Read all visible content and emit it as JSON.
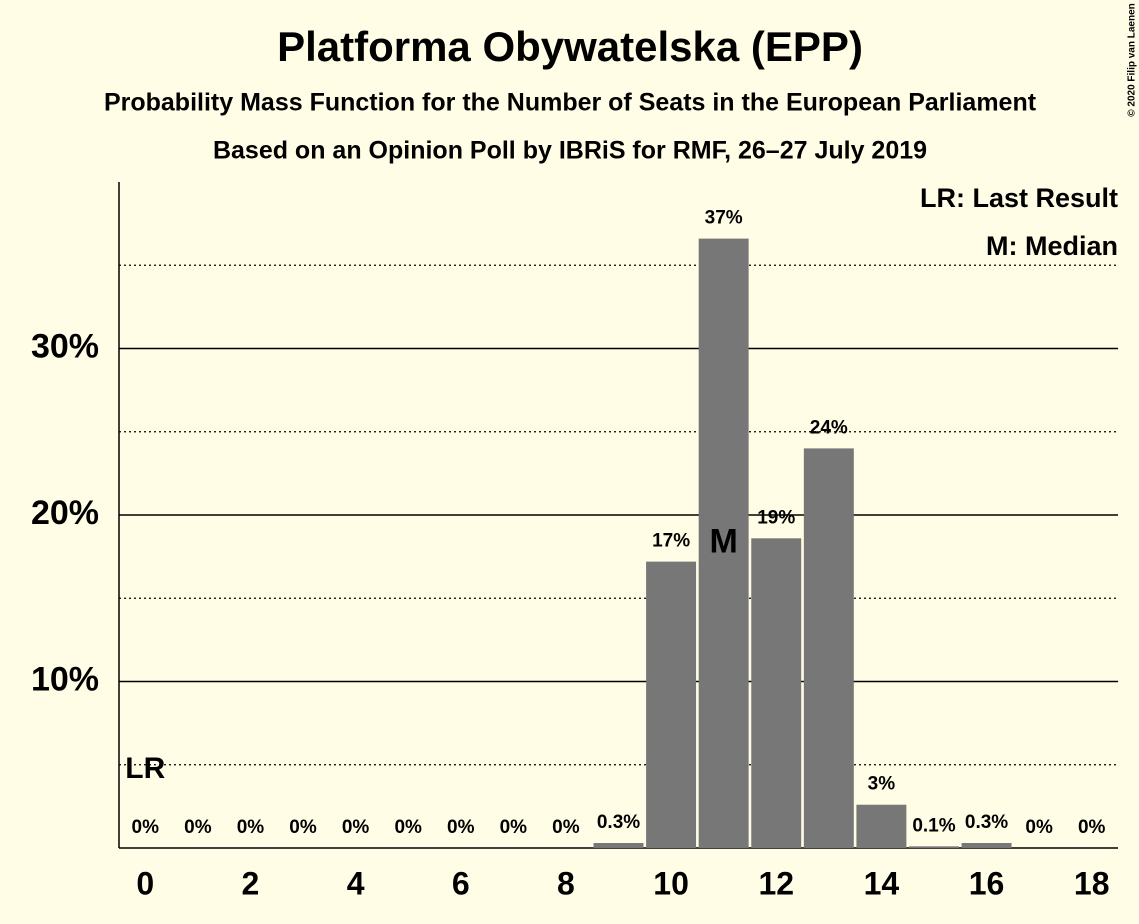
{
  "chart_data": {
    "type": "bar",
    "title": "Platforma Obywatelska (EPP)",
    "subtitle": "Probability Mass Function for the Number of Seats in the European Parliament",
    "subtitle2": "Based on an Opinion Poll by IBRiS for RMF, 26–27 July 2019",
    "copyright": "© 2020 Filip van Laenen",
    "x": [
      0,
      1,
      2,
      3,
      4,
      5,
      6,
      7,
      8,
      9,
      10,
      11,
      12,
      13,
      14,
      15,
      16,
      17,
      18
    ],
    "values": [
      0,
      0,
      0,
      0,
      0,
      0,
      0,
      0,
      0,
      0.3,
      17.2,
      36.6,
      18.6,
      24.0,
      2.6,
      0.1,
      0.3,
      0,
      0
    ],
    "value_labels": [
      "0%",
      "0%",
      "0%",
      "0%",
      "0%",
      "0%",
      "0%",
      "0%",
      "0%",
      "0.3%",
      "17%",
      "37%",
      "19%",
      "24%",
      "3%",
      "0.1%",
      "0.3%",
      "0%",
      "0%"
    ],
    "color": "#777777",
    "xlim": [
      -0.5,
      18.5
    ],
    "xticks": [
      0,
      2,
      4,
      6,
      8,
      10,
      12,
      14,
      16,
      18
    ],
    "ylim": [
      0,
      40
    ],
    "yticks": [
      {
        "value": 10,
        "label": "10%"
      },
      {
        "value": 20,
        "label": "20%"
      },
      {
        "value": 30,
        "label": "30%"
      }
    ],
    "minor_yticks": [
      5,
      15,
      25,
      35
    ],
    "grid": true,
    "last_result": {
      "x": 0,
      "label": "LR"
    },
    "median": {
      "x": 11,
      "label": "M"
    },
    "legend": [
      "LR: Last Result",
      "M: Median"
    ],
    "legend_position": "upper right"
  }
}
